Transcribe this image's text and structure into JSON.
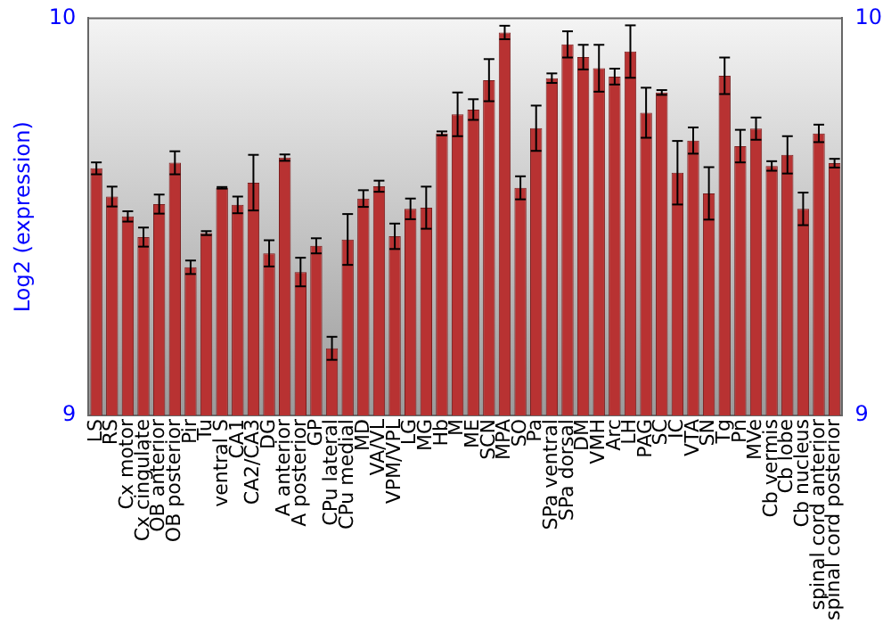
{
  "chart_data": {
    "type": "bar",
    "ylabel": "Log2 (expression)",
    "categories": [
      "LS",
      "RS",
      "Cx motor",
      "Cx cingulate",
      "OB anterior",
      "OB posterior",
      "Pir",
      "Tu",
      "ventral S",
      "CA1",
      "CA2/CA3",
      "DG",
      "A anterior",
      "A posterior",
      "GP",
      "CPu lateral",
      "CPu medial",
      "MD",
      "VA/VL",
      "VPM/VPL",
      "LG",
      "MG",
      "Hb",
      "M",
      "ME",
      "SCN",
      "MPA",
      "SO",
      "Pa",
      "SPa ventral",
      "SPa dorsal",
      "DM",
      "VMH",
      "Arc",
      "LH",
      "PAG",
      "SC",
      "IC",
      "VTA",
      "SN",
      "Tg",
      "Pn",
      "MVe",
      "Cb vermis",
      "Cb lobe",
      "Cb nucleus",
      "spinal cord anterior",
      "spinal cord posterior"
    ],
    "values": [
      9.622,
      9.551,
      9.501,
      9.449,
      9.532,
      9.636,
      9.373,
      9.459,
      9.573,
      9.53,
      9.586,
      9.408,
      9.649,
      9.361,
      9.427,
      9.169,
      9.443,
      9.546,
      9.577,
      9.451,
      9.52,
      9.523,
      9.71,
      9.758,
      9.77,
      9.844,
      9.964,
      9.573,
      9.723,
      9.849,
      9.934,
      9.902,
      9.874,
      9.853,
      9.916,
      9.762,
      9.813,
      9.611,
      9.692,
      9.559,
      9.855,
      9.678,
      9.722,
      9.628,
      9.656,
      9.52,
      9.71,
      9.635
    ],
    "errors": [
      0.015,
      0.025,
      0.013,
      0.024,
      0.024,
      0.029,
      0.017,
      0.005,
      0.002,
      0.021,
      0.07,
      0.033,
      0.008,
      0.036,
      0.019,
      0.029,
      0.064,
      0.021,
      0.014,
      0.032,
      0.026,
      0.053,
      0.005,
      0.055,
      0.026,
      0.053,
      0.017,
      0.029,
      0.057,
      0.012,
      0.033,
      0.031,
      0.059,
      0.02,
      0.066,
      0.063,
      0.006,
      0.08,
      0.033,
      0.066,
      0.046,
      0.041,
      0.028,
      0.012,
      0.047,
      0.041,
      0.022,
      0.011
    ],
    "color": "#b83232",
    "ylim": [
      9,
      10
    ],
    "yticks": [
      9,
      10
    ],
    "y2lim": [
      9,
      10
    ],
    "y2ticks": [
      9,
      10
    ],
    "grid": false,
    "legend": false
  }
}
